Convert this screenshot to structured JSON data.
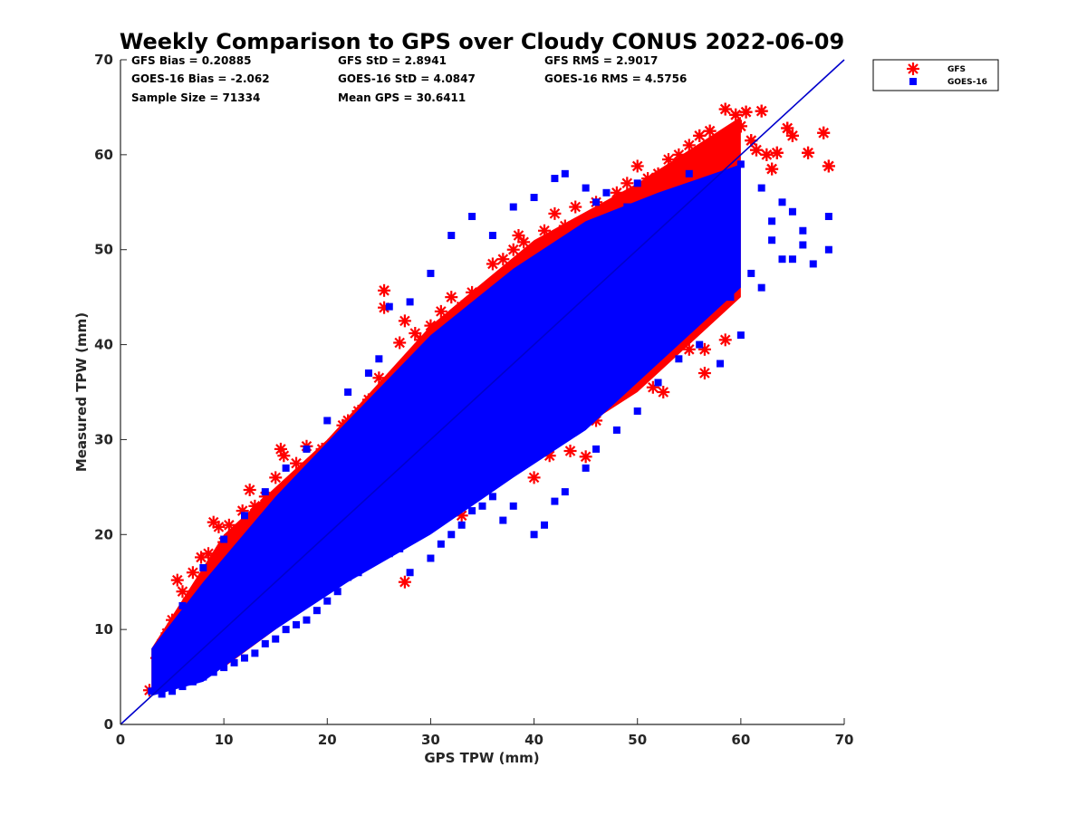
{
  "chart_data": {
    "type": "scatter",
    "title": "Weekly Comparison to GPS over Cloudy CONUS 2022-06-09",
    "xlabel": "GPS TPW (mm)",
    "ylabel": "Measured TPW (mm)",
    "xlim": [
      0,
      70
    ],
    "ylim": [
      0,
      70
    ],
    "xticks": [
      "0",
      "10",
      "20",
      "30",
      "40",
      "50",
      "60",
      "70"
    ],
    "yticks": [
      "0",
      "10",
      "20",
      "30",
      "40",
      "50",
      "60",
      "70"
    ],
    "grid": false,
    "legend_position": "outside-top-right",
    "reference_line": {
      "description": "1:1 line",
      "from": [
        0,
        0
      ],
      "to": [
        70,
        70
      ],
      "color": "#0000cc"
    },
    "stats": [
      [
        "GFS Bias = 0.20885",
        "GFS StD = 2.8941",
        "GFS RMS = 2.9017"
      ],
      [
        "GOES-16 Bias = -2.062",
        "GOES-16 StD = 4.0847",
        "GOES-16 RMS = 4.5756"
      ],
      [
        "Sample Size = 71334",
        "Mean GPS = 30.6411",
        ""
      ]
    ],
    "series": [
      {
        "name": "GFS",
        "marker": "asterisk",
        "color": "#ff0000",
        "points": [
          [
            2.8,
            3.6
          ],
          [
            3.5,
            7.0
          ],
          [
            4.0,
            8.5
          ],
          [
            4.5,
            9.6
          ],
          [
            5.0,
            11.0
          ],
          [
            5.5,
            15.2
          ],
          [
            6.0,
            14.0
          ],
          [
            6.5,
            12.8
          ],
          [
            7.0,
            16.0
          ],
          [
            7.8,
            17.6
          ],
          [
            8.5,
            18.0
          ],
          [
            9.0,
            21.3
          ],
          [
            9.5,
            20.8
          ],
          [
            10.0,
            19.2
          ],
          [
            10.5,
            21.0
          ],
          [
            11.0,
            19.5
          ],
          [
            11.8,
            22.5
          ],
          [
            12.5,
            24.7
          ],
          [
            13.0,
            23.0
          ],
          [
            14.0,
            24.0
          ],
          [
            15.0,
            26.0
          ],
          [
            15.5,
            29.0
          ],
          [
            15.8,
            28.3
          ],
          [
            17.0,
            27.5
          ],
          [
            18.0,
            29.3
          ],
          [
            19.5,
            29.0
          ],
          [
            20.5,
            29.6
          ],
          [
            21.0,
            30.0
          ],
          [
            21.5,
            31.5
          ],
          [
            22.0,
            32.0
          ],
          [
            23.0,
            33.0
          ],
          [
            24.0,
            34.2
          ],
          [
            25.0,
            36.5
          ],
          [
            25.5,
            45.7
          ],
          [
            25.5,
            43.9
          ],
          [
            27.0,
            40.2
          ],
          [
            27.5,
            42.5
          ],
          [
            28.5,
            41.2
          ],
          [
            29.0,
            40.5
          ],
          [
            30.0,
            42.0
          ],
          [
            31.0,
            43.5
          ],
          [
            32.0,
            45.0
          ],
          [
            33.0,
            44.0
          ],
          [
            34.0,
            45.5
          ],
          [
            35.0,
            44.5
          ],
          [
            36.0,
            48.5
          ],
          [
            37.0,
            49.0
          ],
          [
            38.0,
            50.0
          ],
          [
            38.5,
            51.5
          ],
          [
            39.0,
            50.8
          ],
          [
            41.0,
            52.0
          ],
          [
            42.0,
            53.8
          ],
          [
            43.0,
            52.5
          ],
          [
            44.0,
            54.5
          ],
          [
            46.0,
            55.0
          ],
          [
            48.0,
            56.0
          ],
          [
            49.0,
            57.0
          ],
          [
            50.0,
            58.8
          ],
          [
            51.0,
            57.5
          ],
          [
            52.0,
            58.0
          ],
          [
            53.0,
            59.5
          ],
          [
            54.0,
            60.0
          ],
          [
            55.0,
            61.0
          ],
          [
            56.0,
            62.0
          ],
          [
            57.0,
            62.5
          ],
          [
            58.5,
            64.8
          ],
          [
            59.5,
            64.2
          ],
          [
            60.5,
            64.5
          ],
          [
            61.0,
            61.5
          ],
          [
            62.0,
            64.6
          ],
          [
            62.5,
            60.0
          ],
          [
            63.0,
            58.5
          ],
          [
            64.5,
            62.8
          ],
          [
            65.0,
            62.0
          ],
          [
            66.5,
            60.2
          ],
          [
            68.0,
            62.3
          ],
          [
            68.5,
            58.8
          ],
          [
            60.0,
            63.0
          ],
          [
            61.5,
            60.5
          ],
          [
            63.5,
            60.2
          ],
          [
            27.5,
            15.0
          ],
          [
            33.0,
            22.0
          ],
          [
            40.0,
            26.0
          ],
          [
            41.5,
            28.3
          ],
          [
            43.5,
            28.8
          ],
          [
            45.0,
            28.2
          ],
          [
            46.0,
            32.0
          ],
          [
            48.5,
            34.8
          ],
          [
            49.5,
            37.5
          ],
          [
            50.5,
            38.5
          ],
          [
            51.5,
            35.5
          ],
          [
            52.5,
            35.0
          ],
          [
            53.5,
            40.5
          ],
          [
            55.0,
            39.5
          ],
          [
            56.5,
            37.0
          ],
          [
            56.5,
            39.5
          ],
          [
            58.0,
            44.5
          ],
          [
            58.5,
            40.5
          ],
          [
            54.0,
            43.0
          ],
          [
            47.0,
            36.0
          ],
          [
            44.0,
            33.0
          ],
          [
            38.0,
            30.0
          ],
          [
            35.0,
            26.0
          ],
          [
            30.0,
            22.0
          ],
          [
            37.0,
            31.0
          ]
        ]
      },
      {
        "name": "GOES-16",
        "marker": "square",
        "color": "#0000ff",
        "points": [
          [
            3.0,
            3.5
          ],
          [
            4.0,
            3.2
          ],
          [
            4.5,
            4.0
          ],
          [
            5.0,
            3.5
          ],
          [
            6.0,
            4.0
          ],
          [
            7.0,
            4.5
          ],
          [
            8.0,
            5.0
          ],
          [
            9.0,
            5.5
          ],
          [
            10.0,
            6.0
          ],
          [
            11.0,
            6.5
          ],
          [
            12.0,
            7.0
          ],
          [
            13.0,
            7.5
          ],
          [
            14.0,
            8.5
          ],
          [
            15.0,
            9.0
          ],
          [
            16.0,
            10.0
          ],
          [
            17.0,
            10.5
          ],
          [
            18.0,
            11.0
          ],
          [
            19.0,
            12.0
          ],
          [
            20.0,
            13.0
          ],
          [
            21.0,
            14.0
          ],
          [
            22.0,
            15.5
          ],
          [
            23.0,
            16.0
          ],
          [
            24.0,
            17.0
          ],
          [
            25.0,
            17.5
          ],
          [
            26.0,
            18.0
          ],
          [
            27.0,
            18.5
          ],
          [
            28.0,
            16.0
          ],
          [
            30.0,
            17.5
          ],
          [
            31.0,
            19.0
          ],
          [
            32.0,
            20.0
          ],
          [
            33.0,
            21.0
          ],
          [
            34.0,
            22.5
          ],
          [
            35.0,
            23.0
          ],
          [
            36.0,
            24.0
          ],
          [
            37.0,
            21.5
          ],
          [
            38.0,
            23.0
          ],
          [
            40.0,
            20.0
          ],
          [
            41.0,
            21.0
          ],
          [
            42.0,
            23.5
          ],
          [
            43.0,
            24.5
          ],
          [
            45.0,
            27.0
          ],
          [
            46.0,
            29.0
          ],
          [
            48.0,
            31.0
          ],
          [
            50.0,
            33.0
          ],
          [
            52.0,
            36.0
          ],
          [
            54.0,
            38.5
          ],
          [
            56.0,
            40.0
          ],
          [
            58.0,
            38.0
          ],
          [
            60.0,
            41.0
          ],
          [
            62.0,
            46.0
          ],
          [
            64.0,
            49.0
          ],
          [
            66.0,
            50.5
          ],
          [
            68.5,
            50.0
          ],
          [
            68.5,
            53.5
          ],
          [
            67.0,
            48.5
          ],
          [
            65.0,
            54.0
          ],
          [
            63.0,
            51.0
          ],
          [
            61.0,
            47.5
          ],
          [
            59.0,
            45.0
          ],
          [
            57.0,
            46.5
          ],
          [
            55.0,
            49.0
          ],
          [
            53.0,
            50.5
          ],
          [
            51.0,
            52.0
          ],
          [
            49.0,
            54.5
          ],
          [
            47.0,
            56.0
          ],
          [
            46.0,
            55.0
          ],
          [
            43.0,
            58.0
          ],
          [
            42.0,
            57.5
          ],
          [
            40.0,
            55.5
          ],
          [
            38.0,
            54.5
          ],
          [
            36.0,
            51.5
          ],
          [
            34.0,
            53.5
          ],
          [
            32.0,
            51.5
          ],
          [
            30.0,
            47.5
          ],
          [
            28.0,
            44.5
          ],
          [
            26.0,
            44.0
          ],
          [
            25.0,
            38.5
          ],
          [
            24.0,
            37.0
          ],
          [
            22.0,
            35.0
          ],
          [
            20.0,
            32.0
          ],
          [
            18.0,
            29.0
          ],
          [
            16.0,
            27.0
          ],
          [
            14.0,
            24.5
          ],
          [
            12.0,
            22.0
          ],
          [
            10.0,
            19.5
          ],
          [
            8.0,
            16.5
          ],
          [
            6.0,
            12.5
          ],
          [
            5.0,
            9.5
          ],
          [
            4.0,
            7.0
          ],
          [
            3.5,
            5.5
          ],
          [
            45.0,
            56.5
          ],
          [
            50.0,
            57.0
          ],
          [
            55.0,
            58.0
          ],
          [
            60.0,
            59.0
          ],
          [
            62.0,
            56.5
          ],
          [
            58.0,
            55.5
          ],
          [
            63.0,
            53.0
          ],
          [
            65.0,
            49.0
          ],
          [
            66.0,
            52.0
          ],
          [
            64.0,
            55.0
          ]
        ]
      }
    ],
    "density_band": {
      "description": "dense core of overlapping GOES-16 squares around the 1:1 line",
      "color": "#0000ff",
      "x": [
        3,
        8,
        15,
        22,
        30,
        38,
        45,
        52,
        60
      ],
      "y_lower": [
        3,
        4.5,
        10,
        15,
        20,
        26,
        31,
        38,
        46
      ],
      "y_upper": [
        8,
        15,
        24,
        32,
        41,
        48,
        53,
        56,
        59
      ]
    },
    "gfs_band": {
      "description": "dense core of overlapping GFS asterisks",
      "color": "#ff0000",
      "x": [
        3,
        10,
        20,
        30,
        40,
        50,
        60
      ],
      "y_lower": [
        3,
        6,
        14,
        22,
        28,
        35,
        45
      ],
      "y_upper": [
        8,
        20,
        30,
        42,
        51,
        57,
        64
      ]
    }
  }
}
